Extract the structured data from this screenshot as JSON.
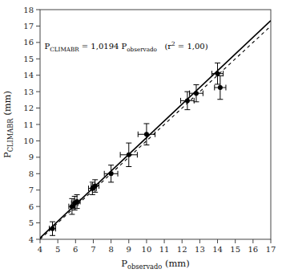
{
  "chart_data": {
    "type": "scatter",
    "xlabel": "Pobservado (mm)",
    "ylabel": "PCLIMABR (mm)",
    "xlim": [
      4,
      17
    ],
    "ylim": [
      4,
      18
    ],
    "xticks": [
      4,
      5,
      6,
      7,
      8,
      9,
      10,
      11,
      12,
      13,
      14,
      15,
      16,
      17
    ],
    "yticks": [
      4,
      5,
      6,
      7,
      8,
      9,
      10,
      11,
      12,
      13,
      14,
      15,
      16,
      17,
      18
    ],
    "grid": false,
    "series": [
      {
        "type": "line",
        "color": "#000000",
        "line_style": "dashed",
        "x": [
          4.0,
          17.0
        ],
        "values": [
          4.0,
          17.0
        ]
      },
      {
        "type": "line",
        "color": "#000000",
        "line_style": "solid",
        "x": [
          4.0,
          17.0
        ],
        "values": [
          4.0776,
          17.3298
        ]
      },
      {
        "type": "scatter",
        "color": "#000000",
        "marker": "circle",
        "x": [
          4.7,
          5.8,
          5.95,
          6.08,
          6.95,
          7.1,
          8.0,
          9.0,
          10.0,
          12.3,
          12.8,
          14.0,
          14.15
        ],
        "values": [
          4.65,
          6.0,
          6.2,
          6.3,
          7.1,
          7.25,
          8.0,
          9.15,
          10.4,
          12.45,
          12.9,
          14.1,
          13.25
        ],
        "xerr": [
          0.18,
          0.18,
          0.18,
          0.18,
          0.22,
          0.22,
          0.38,
          0.48,
          0.48,
          0.38,
          0.38,
          0.32,
          0.32
        ],
        "yerr": [
          0.42,
          0.48,
          0.42,
          0.42,
          0.38,
          0.38,
          0.52,
          0.72,
          0.65,
          0.55,
          0.52,
          0.65,
          0.72
        ]
      }
    ],
    "annotations": [
      {
        "text": "PCLIMABR = 1,0194 Pobservado   (r2 = 1,00)",
        "x": 4.25,
        "y": 16.1
      }
    ]
  }
}
